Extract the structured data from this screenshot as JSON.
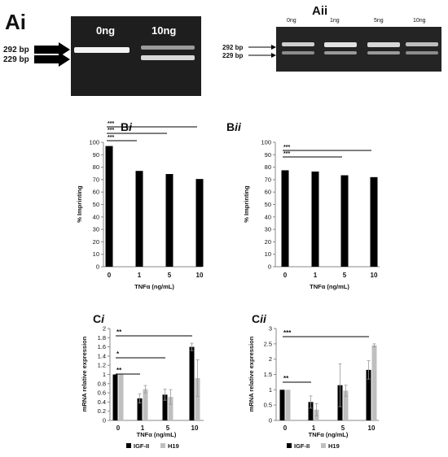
{
  "gels": {
    "ai": {
      "panel_label": "Ai",
      "lanes": [
        "0ng",
        "10ng"
      ],
      "bands": [
        "292 bp",
        "229 bp"
      ]
    },
    "aii": {
      "panel_label": "Aii",
      "lanes": [
        "0ng",
        "1ng",
        "5ng",
        "10ng"
      ],
      "bands": [
        "292 bp",
        "229 bp"
      ]
    }
  },
  "chart_data": [
    {
      "id": "bi",
      "panel_label": "Bi",
      "type": "bar",
      "categories": [
        "0",
        "1",
        "5",
        "10"
      ],
      "values": [
        97,
        77,
        74.5,
        70.5
      ],
      "ylabel": "% Imprinting",
      "xlabel": "TNFα (ng/mL)",
      "ylim": [
        0,
        100
      ],
      "yticks": [
        0,
        10,
        20,
        30,
        40,
        50,
        60,
        70,
        80,
        90,
        100
      ],
      "significance": [
        {
          "from": "0",
          "to": "1",
          "label": "***"
        },
        {
          "from": "0",
          "to": "5",
          "label": "***"
        },
        {
          "from": "0",
          "to": "10",
          "label": "***"
        }
      ],
      "colors": {
        "bar": "#000000"
      }
    },
    {
      "id": "bii",
      "panel_label": "Bii",
      "type": "bar",
      "categories": [
        "0",
        "1",
        "5",
        "10"
      ],
      "values": [
        77.5,
        76.5,
        73.5,
        72
      ],
      "ylabel": "% Imprinting",
      "xlabel": "TNFα (ng/mL)",
      "ylim": [
        0,
        100
      ],
      "yticks": [
        0,
        10,
        20,
        30,
        40,
        50,
        60,
        70,
        80,
        90,
        100
      ],
      "significance": [
        {
          "from": "0",
          "to": "5",
          "label": "***"
        },
        {
          "from": "0",
          "to": "10",
          "label": "***"
        }
      ],
      "colors": {
        "bar": "#000000"
      }
    },
    {
      "id": "ci",
      "panel_label": "Ci",
      "type": "bar",
      "categories": [
        "0",
        "1",
        "5",
        "10"
      ],
      "series": [
        {
          "name": "IGF-II",
          "values": [
            1.0,
            0.48,
            0.56,
            1.6
          ],
          "errors": [
            0,
            0.1,
            0.12,
            0.08
          ],
          "color": "#000000"
        },
        {
          "name": "H19",
          "values": [
            1.0,
            0.68,
            0.51,
            0.92
          ],
          "errors": [
            0,
            0.08,
            0.16,
            0.4
          ],
          "color": "#bfbfbf"
        }
      ],
      "ylabel": "mRNA relative expression",
      "xlabel": "TNFα (ng/mL)",
      "ylim": [
        0,
        2
      ],
      "yticks": [
        0,
        0.2,
        0.4,
        0.6,
        0.8,
        1,
        1.2,
        1.4,
        1.6,
        1.8,
        2
      ],
      "significance": [
        {
          "from": "0",
          "to": "1",
          "label": "**"
        },
        {
          "from": "0",
          "to": "5",
          "label": "*"
        },
        {
          "from": "0",
          "to": "10",
          "label": "**"
        }
      ]
    },
    {
      "id": "cii",
      "panel_label": "Cii",
      "type": "bar",
      "categories": [
        "0",
        "1",
        "5",
        "10"
      ],
      "series": [
        {
          "name": "IGF-II",
          "values": [
            1.0,
            0.6,
            1.15,
            1.65
          ],
          "errors": [
            0,
            0.2,
            0.7,
            0.3
          ],
          "color": "#000000"
        },
        {
          "name": "H19",
          "values": [
            1.0,
            0.35,
            0.97,
            2.45
          ],
          "errors": [
            0,
            0.2,
            0.18,
            0.05
          ],
          "color": "#bfbfbf"
        }
      ],
      "ylabel": "mRNA relative expression",
      "xlabel": "TNFα (ng/mL)",
      "ylim": [
        0,
        3
      ],
      "yticks": [
        0,
        0.5,
        1,
        1.5,
        2,
        2.5,
        3
      ],
      "significance": [
        {
          "from": "0",
          "to": "1",
          "label": "**"
        },
        {
          "from": "0",
          "to": "10",
          "label": "***"
        }
      ]
    }
  ]
}
